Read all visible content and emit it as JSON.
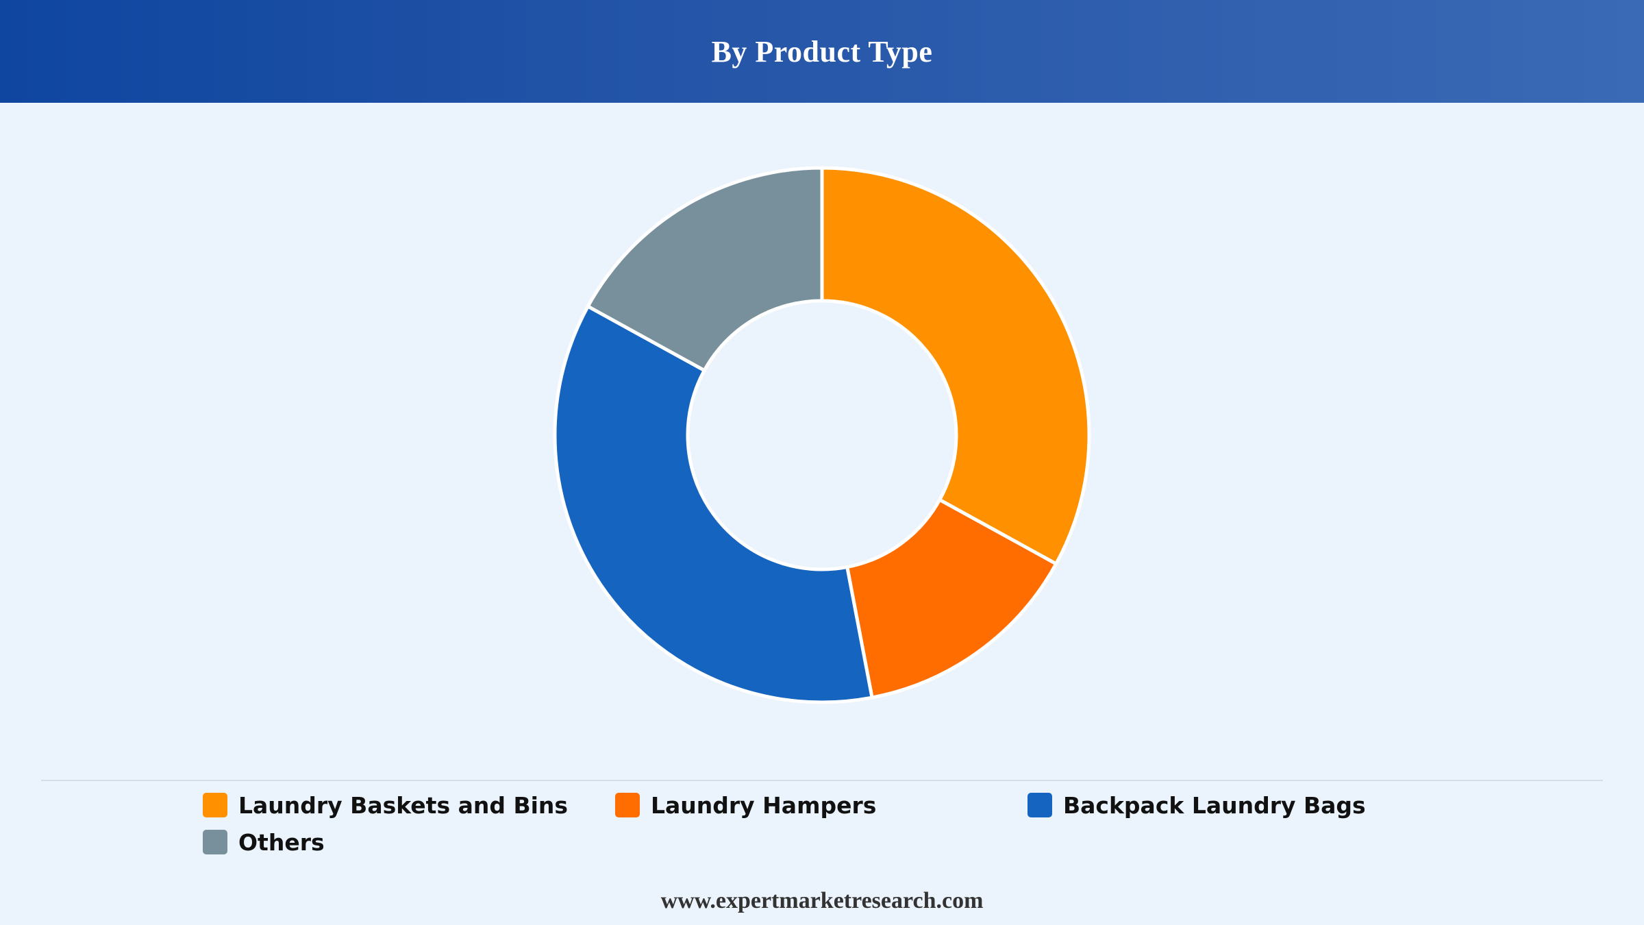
{
  "header": {
    "title": "By Product Type"
  },
  "chart_data": {
    "type": "pie",
    "variant": "donut",
    "title": "By Product Type",
    "categories": [
      "Laundry Baskets and Bins",
      "Laundry Hampers",
      "Backpack Laundry Bags",
      "Others"
    ],
    "values": [
      33,
      14,
      36,
      17
    ],
    "colors": [
      "#ff9100",
      "#ff6d00",
      "#1565c0",
      "#78909c"
    ],
    "legend": "bottom"
  },
  "footer": {
    "url": "www.expertmarketresearch.com"
  }
}
